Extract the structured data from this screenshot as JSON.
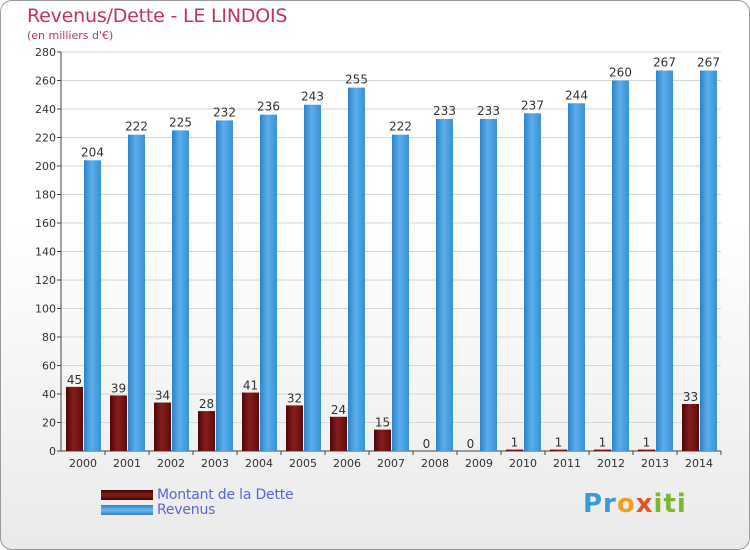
{
  "header": {
    "title": "Revenus/Dette - LE LINDOIS",
    "subtitle": "(en milliers d'€)"
  },
  "legend": {
    "debt_label": "Montant de la Dette",
    "revenue_label": "Revenus"
  },
  "logo": {
    "text": "Proxiti"
  },
  "colors": {
    "title": "#c2306a",
    "debt": "#7a1414",
    "revenue": "#4a9fe0",
    "legend_text": "#5a66d8"
  },
  "chart_data": {
    "type": "bar",
    "title": "Revenus/Dette - LE LINDOIS",
    "subtitle": "(en milliers d'€)",
    "xlabel": "",
    "ylabel": "",
    "categories": [
      "2000",
      "2001",
      "2002",
      "2003",
      "2004",
      "2005",
      "2006",
      "2007",
      "2008",
      "2009",
      "2010",
      "2011",
      "2012",
      "2013",
      "2014"
    ],
    "series": [
      {
        "name": "Montant de la Dette",
        "values": [
          45,
          39,
          34,
          28,
          41,
          32,
          24,
          15,
          0,
          0,
          1,
          1,
          1,
          1,
          33
        ]
      },
      {
        "name": "Revenus",
        "values": [
          204,
          222,
          225,
          232,
          236,
          243,
          255,
          222,
          233,
          233,
          237,
          244,
          260,
          267,
          267
        ]
      }
    ],
    "ylim": [
      0,
      280
    ],
    "yticks": [
      0,
      20,
      40,
      60,
      80,
      100,
      120,
      140,
      160,
      180,
      200,
      220,
      240,
      260,
      280
    ],
    "grid": true,
    "legend_position": "bottom-left"
  }
}
